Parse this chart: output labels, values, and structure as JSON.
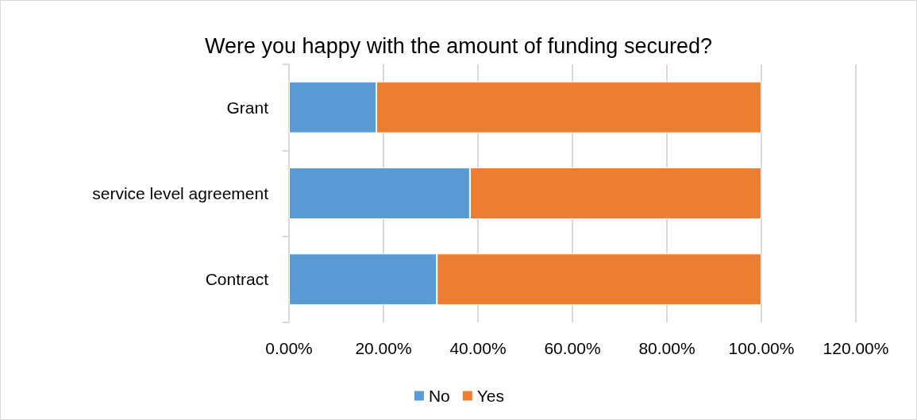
{
  "chart_data": {
    "type": "bar",
    "title": "Were you happy with the amount of funding secured?",
    "orientation": "horizontal",
    "stacked": true,
    "categories": [
      "Grant",
      "service level agreement",
      "Contract"
    ],
    "series": [
      {
        "name": "No",
        "color": "#5b9bd5",
        "values": [
          18.5,
          38.3,
          31.3
        ]
      },
      {
        "name": "Yes",
        "color": "#ed7d31",
        "values": [
          81.5,
          61.7,
          68.7
        ]
      }
    ],
    "xlim": [
      0,
      120
    ],
    "xticks": [
      {
        "value": 0,
        "label": "0.00%"
      },
      {
        "value": 20,
        "label": "20.00%"
      },
      {
        "value": 40,
        "label": "40.00%"
      },
      {
        "value": 60,
        "label": "60.00%"
      },
      {
        "value": 80,
        "label": "80.00%"
      },
      {
        "value": 100,
        "label": "100.00%"
      },
      {
        "value": 120,
        "label": "120.00%"
      }
    ],
    "grid": "x",
    "legend": "bottom"
  }
}
